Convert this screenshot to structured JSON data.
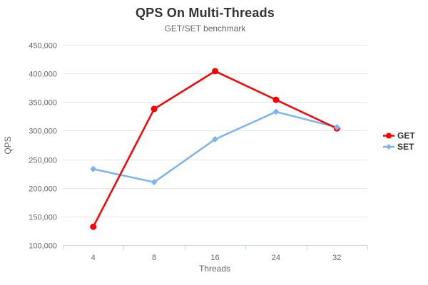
{
  "chart_data": {
    "type": "line",
    "title": "QPS On Multi-Threads",
    "subtitle": "GET/SET benchmark",
    "xlabel": "Threads",
    "ylabel": "QPS",
    "categories": [
      "4",
      "8",
      "16",
      "24",
      "32"
    ],
    "series": [
      {
        "name": "GET",
        "color": "#ff0000",
        "marker": "circle",
        "values": [
          132000,
          338000,
          404000,
          354000,
          304000
        ]
      },
      {
        "name": "SET",
        "color": "#7cb5ec",
        "marker": "diamond",
        "values": [
          233000,
          210000,
          285000,
          333000,
          306000
        ]
      }
    ],
    "ylim": [
      100000,
      450000
    ],
    "ytick_step": 50000,
    "ytick_labels": [
      "100,000",
      "150,000",
      "200,000",
      "250,000",
      "300,000",
      "350,000",
      "400,000",
      "450,000"
    ],
    "grid": true,
    "legend_position": "right",
    "colors": {
      "grid": "#e6e6e6",
      "axis_line": "#ccd6eb",
      "tick_text": "#666666",
      "axis_title_text": "#666666",
      "title_text": "#333333",
      "subtitle_text": "#666666",
      "legend_text": "#333333",
      "background": "#ffffff"
    }
  }
}
